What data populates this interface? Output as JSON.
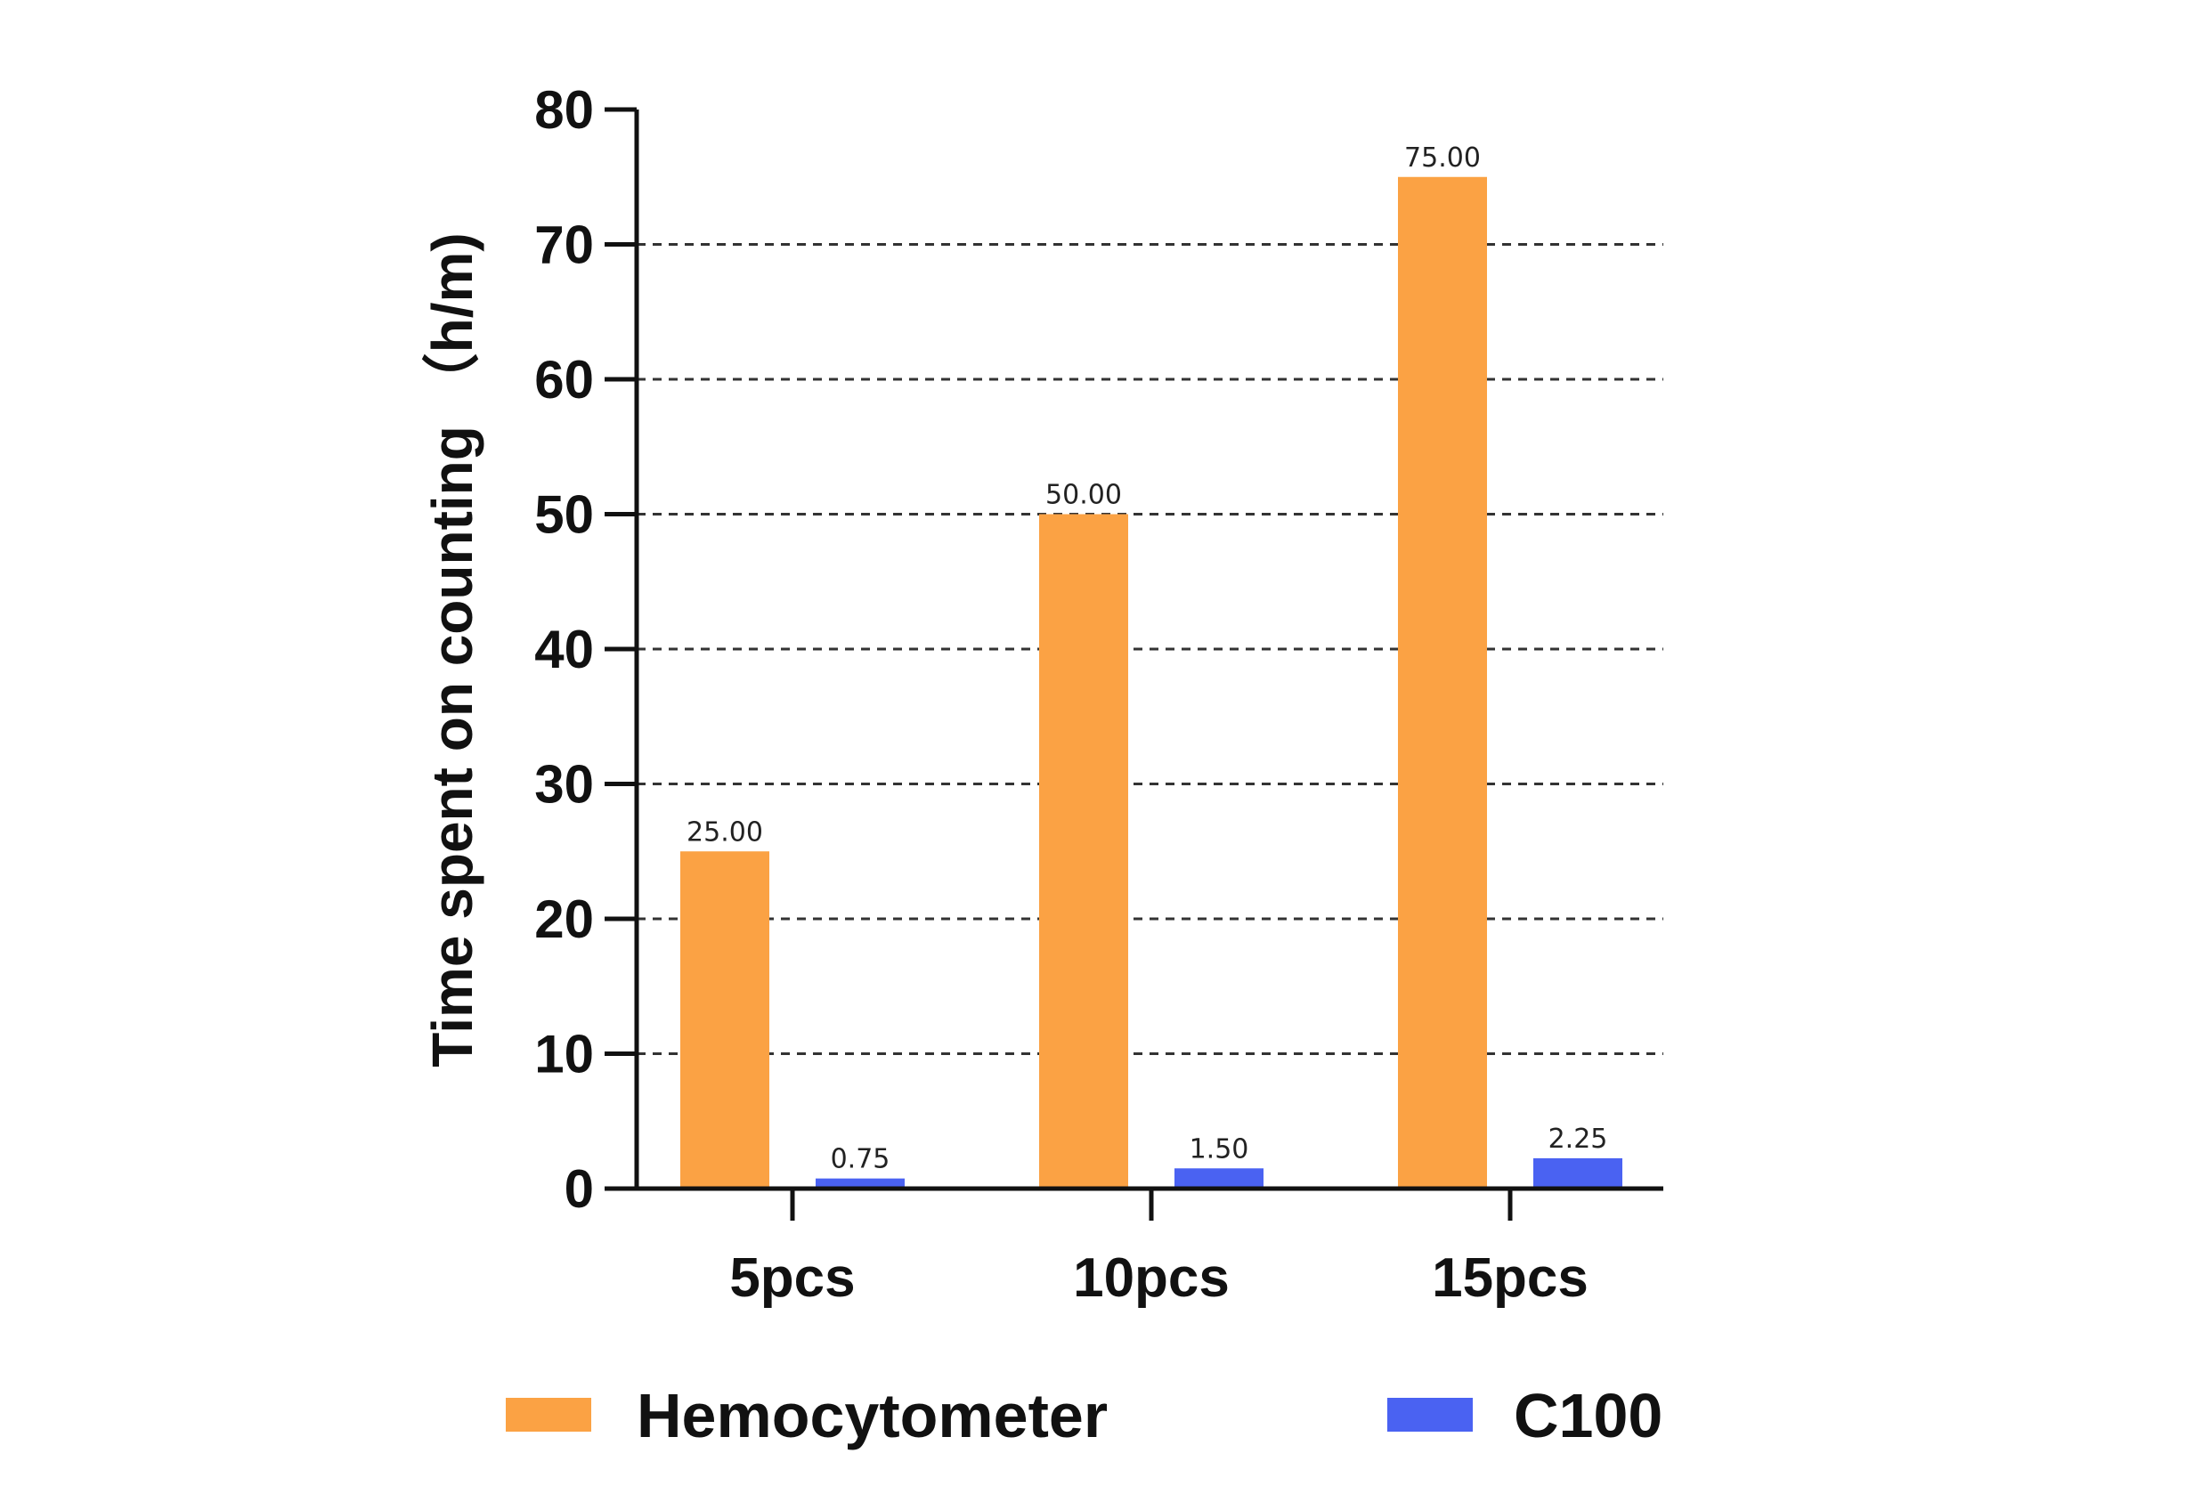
{
  "chart_data": {
    "type": "bar",
    "title": "",
    "xlabel": "",
    "ylabel": "Time spent on counting （h/m)",
    "categories": [
      "5pcs",
      "10pcs",
      "15pcs"
    ],
    "series": [
      {
        "name": "Hemocytometer",
        "color": "#FBA244",
        "values": [
          25,
          50,
          75
        ],
        "labels": [
          "25.00",
          "50.00",
          "75.00"
        ]
      },
      {
        "name": "C100",
        "color": "#4A62F2",
        "values": [
          0.75,
          1.5,
          2.25
        ],
        "labels": [
          "0.75",
          "1.50",
          "2.25"
        ]
      }
    ],
    "ylim": [
      0,
      80
    ],
    "yticks": [
      0,
      10,
      20,
      30,
      40,
      50,
      60,
      70,
      80
    ],
    "grid": "dashed horizontal",
    "legend": "bottom"
  }
}
